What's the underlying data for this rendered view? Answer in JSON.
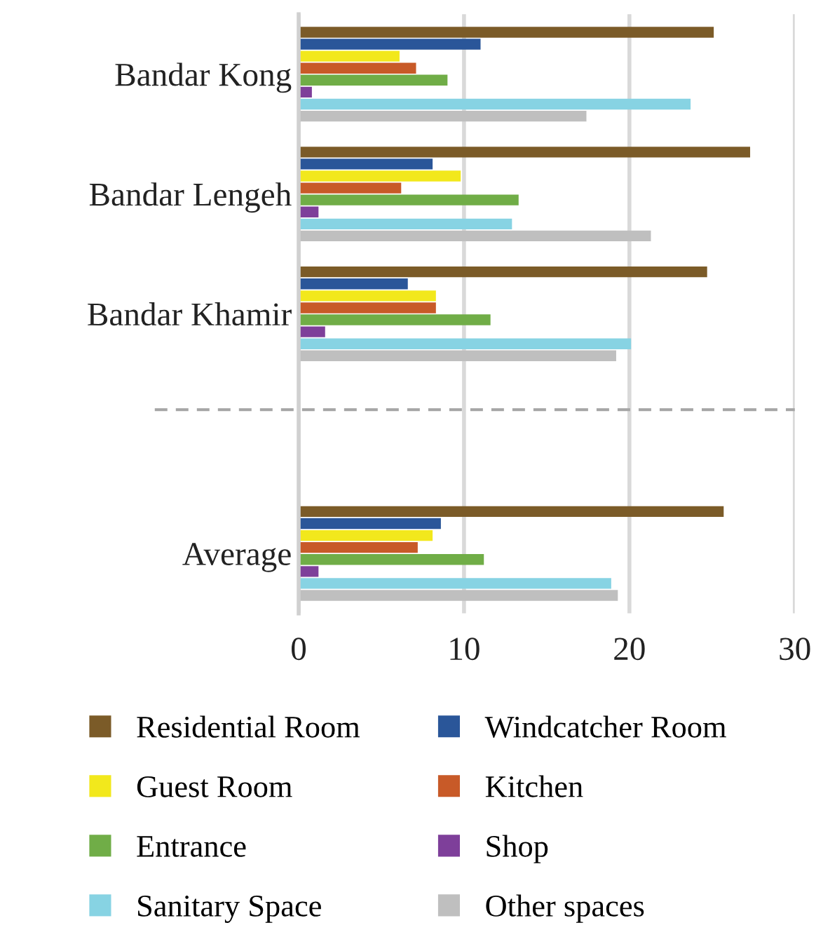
{
  "chart_data": {
    "type": "bar",
    "orientation": "horizontal",
    "categories": [
      "Bandar Kong",
      "Bandar Lengeh",
      "Bandar Khamir",
      null,
      "Average"
    ],
    "series": [
      {
        "name": "Residential Room",
        "color": "#7b5b28",
        "values": [
          25.1,
          27.3,
          24.7,
          null,
          25.7
        ]
      },
      {
        "name": "Windcatcher Room",
        "color": "#2a5699",
        "values": [
          11.0,
          8.1,
          6.6,
          null,
          8.6
        ]
      },
      {
        "name": "Guest Room",
        "color": "#f2e81c",
        "values": [
          6.1,
          9.8,
          8.3,
          null,
          8.1
        ]
      },
      {
        "name": "Kitchen",
        "color": "#c85a28",
        "values": [
          7.1,
          6.2,
          8.3,
          null,
          7.2
        ]
      },
      {
        "name": "Entrance",
        "color": "#70ad47",
        "values": [
          9.0,
          13.3,
          11.6,
          null,
          11.2
        ]
      },
      {
        "name": "Shop",
        "color": "#7e3f9a",
        "values": [
          0.8,
          1.2,
          1.6,
          null,
          1.2
        ]
      },
      {
        "name": "Sanitary Space",
        "color": "#87d3e3",
        "values": [
          23.7,
          12.9,
          20.1,
          null,
          18.9
        ]
      },
      {
        "name": "Other spaces",
        "color": "#bfbfbf",
        "values": [
          17.4,
          21.3,
          19.2,
          null,
          19.3
        ]
      }
    ],
    "xlim": [
      0,
      30
    ],
    "xticks": [
      0,
      10,
      20,
      30
    ],
    "grid": "x",
    "legend": "bottom"
  }
}
